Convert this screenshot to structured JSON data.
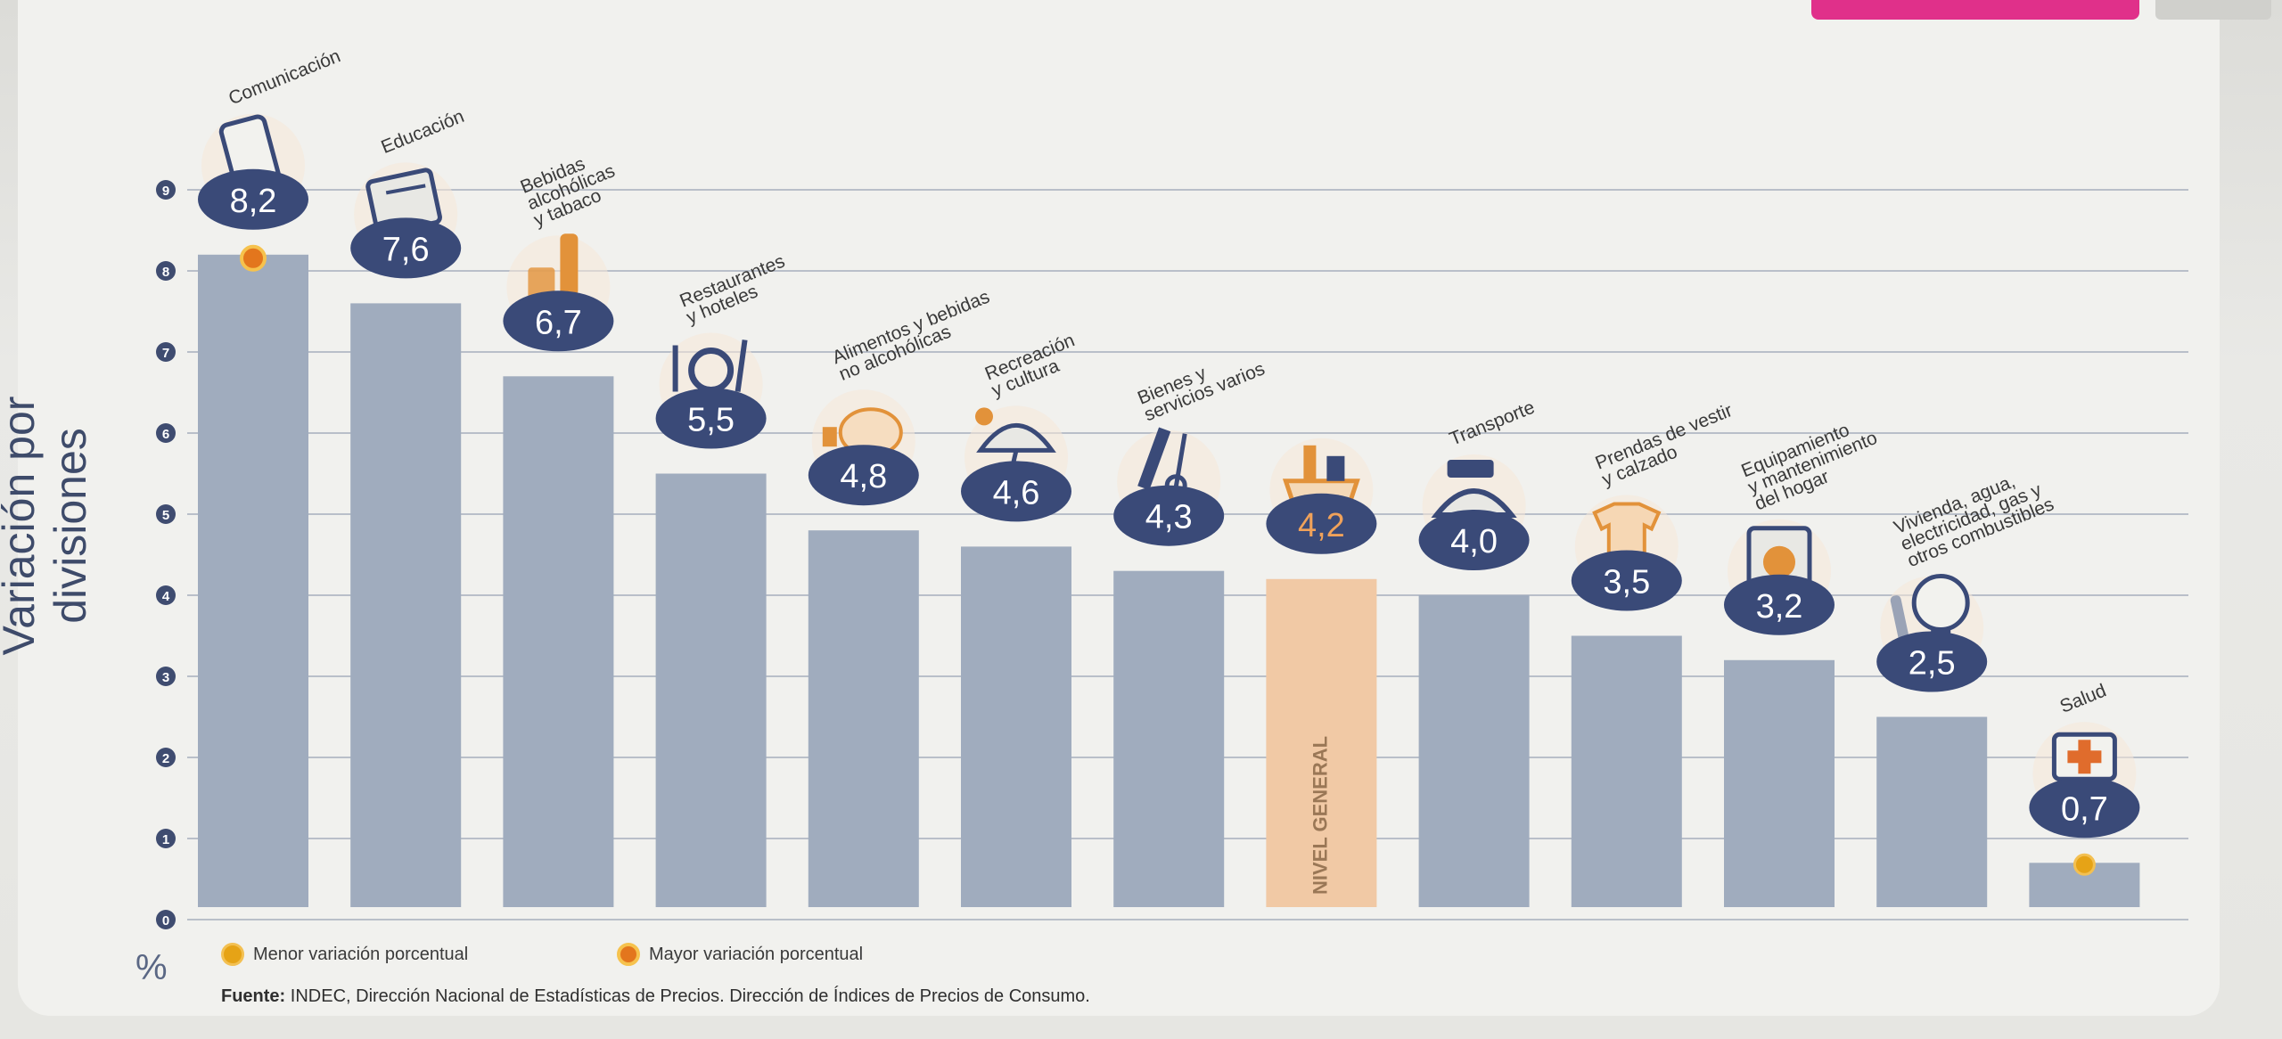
{
  "ylabel": "Variación por divisiones",
  "unit": "%",
  "legend": {
    "min": "Menor variación porcentual",
    "max": "Mayor variación porcentual"
  },
  "source_label": "Fuente:",
  "source_text": "INDEC, Dirección Nacional de Estadísticas de Precios. Dirección de Índices de Precios de Consumo.",
  "colors": {
    "bar": "#a0acbe",
    "highlight_bar": "#f1c9a5",
    "badge": "#3a4a78",
    "badge_highlight": "#e08a3c",
    "icon": "#e2923a",
    "marker": "#e6a316"
  },
  "chart_data": {
    "type": "bar",
    "ylabel": "Variación por divisiones",
    "ylim": [
      0,
      9
    ],
    "yticks": [
      "0",
      "1",
      "2",
      "3",
      "4",
      "5",
      "6",
      "7",
      "8",
      "9"
    ],
    "grid": true,
    "categories": [
      {
        "lines": [
          "Comunicación"
        ],
        "label": "8,2",
        "icon": "phone-icon",
        "marker": "max"
      },
      {
        "lines": [
          "Educación"
        ],
        "label": "7,6",
        "icon": "notebook-icon"
      },
      {
        "lines": [
          "Bebidas",
          "alcohólicas",
          "y tabaco"
        ],
        "label": "6,7",
        "icon": "bottle-icon"
      },
      {
        "lines": [
          "Restaurantes",
          "y hoteles"
        ],
        "label": "5,5",
        "icon": "dish-icon"
      },
      {
        "lines": [
          "Alimentos y bebidas",
          "no alcohólicas"
        ],
        "label": "4,8",
        "icon": "chicken-icon"
      },
      {
        "lines": [
          "Recreación",
          "y cultura"
        ],
        "label": "4,6",
        "icon": "umbrella-icon"
      },
      {
        "lines": [
          "Bienes y",
          "servicios varios"
        ],
        "label": "4,3",
        "icon": "comb-icon"
      },
      {
        "lines": [],
        "label": "4,2",
        "icon": "basket-icon",
        "highlight": true,
        "bar_text": "NIVEL GENERAL"
      },
      {
        "lines": [
          "Transporte"
        ],
        "label": "4,0",
        "icon": "bus-icon"
      },
      {
        "lines": [
          "Prendas de vestir",
          "y calzado"
        ],
        "label": "3,5",
        "icon": "shirt-icon"
      },
      {
        "lines": [
          "Equipamiento",
          "y mantenimiento",
          "del hogar"
        ],
        "label": "3,2",
        "icon": "washer-icon"
      },
      {
        "lines": [
          "Vivienda, agua,",
          "electricidad, gas y",
          "otros combustibles"
        ],
        "label": "2,5",
        "icon": "bulb-icon"
      },
      {
        "lines": [
          "Salud"
        ],
        "label": "0,7",
        "icon": "medkit-icon",
        "marker": "min"
      }
    ],
    "values": [
      8.2,
      7.6,
      6.7,
      5.5,
      4.8,
      4.6,
      4.3,
      4.2,
      4.0,
      3.5,
      3.2,
      2.5,
      0.7
    ]
  }
}
